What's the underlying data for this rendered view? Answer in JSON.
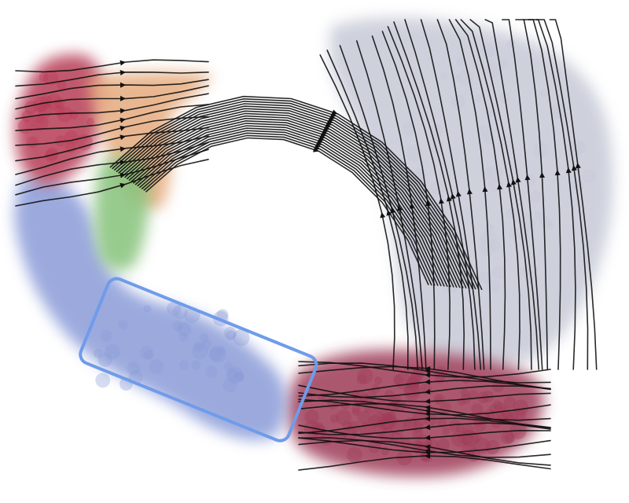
{
  "figure": {
    "kind": "rna-velocity-stream-embedding",
    "highlight_box": {
      "present": true,
      "color": "#6f9bea"
    }
  },
  "clusters": [
    {
      "id": "crimson-upper-left",
      "color": "#b63a55"
    },
    {
      "id": "peach-upper-left",
      "color": "#e5ab7e"
    },
    {
      "id": "green-upper-left",
      "color": "#86c27a"
    },
    {
      "id": "periwinkle-left-arc",
      "color": "#8a9bd8"
    },
    {
      "id": "grey-right-lobe",
      "color": "#c6c9d7"
    },
    {
      "id": "maroon-bottom",
      "color": "#9d3a56"
    }
  ],
  "stream_color": "#111111"
}
